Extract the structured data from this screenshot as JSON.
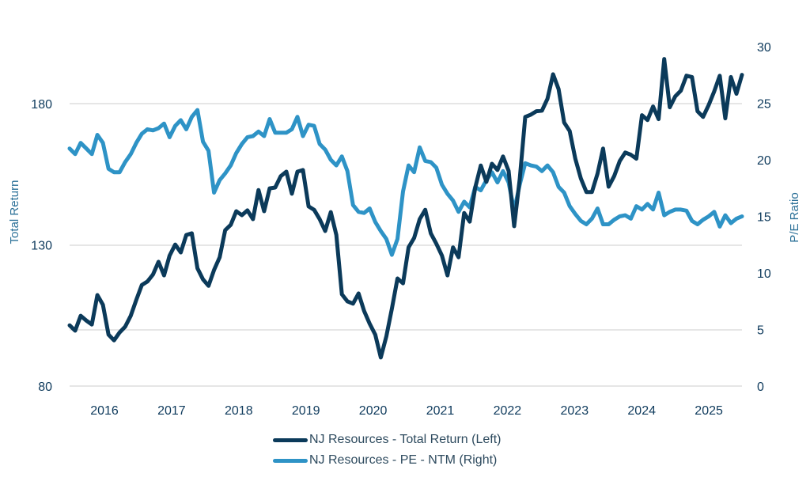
{
  "chart_data": {
    "type": "line",
    "title": "",
    "xlabel": "",
    "ylabel": "Total Return",
    "y2label": "P/E Ratio",
    "ylim": [
      80,
      200
    ],
    "y2lim": [
      0,
      30
    ],
    "yticks": [
      80,
      130,
      180
    ],
    "y2ticks": [
      0,
      5,
      10,
      15,
      20,
      25,
      30
    ],
    "xticks": [
      "2016",
      "2017",
      "2018",
      "2019",
      "2020",
      "2021",
      "2022",
      "2023",
      "2024",
      "2025"
    ],
    "x_start": "2015-07",
    "x_frequency": "monthly",
    "grid": true,
    "legend_position": "bottom",
    "colors": {
      "total_return": "#0b3a5a",
      "pe": "#2e93c6",
      "grid": "#dddddd",
      "tick": "#0e3a5c",
      "axis_title": "#2a6f97"
    },
    "series": [
      {
        "name": "NJ Resources - Total Return (Left)",
        "axis": "left",
        "values": [
          101.5,
          99.6,
          104.9,
          103.2,
          101.8,
          112.2,
          108.8,
          98.2,
          96.2,
          99.0,
          101.0,
          104.9,
          110.5,
          115.8,
          117.0,
          119.5,
          124.0,
          119.2,
          126.2,
          130.1,
          127.3,
          133.5,
          134.1,
          121.7,
          117.8,
          115.5,
          121.1,
          125.6,
          135.2,
          137.1,
          141.9,
          140.5,
          142.2,
          139.1,
          149.4,
          141.9,
          150.0,
          150.3,
          154.3,
          155.9,
          148.1,
          155.9,
          156.5,
          143.6,
          142.4,
          139.1,
          134.9,
          141.6,
          133.5,
          112.5,
          110.0,
          109.2,
          112.8,
          106.6,
          102.1,
          98.2,
          90.1,
          97.6,
          107.4,
          118.1,
          116.4,
          129.1,
          132.4,
          139.1,
          142.4,
          134.1,
          130.4,
          126.2,
          119.2,
          129.1,
          125.6,
          141.3,
          138.2,
          150.3,
          158.1,
          152.3,
          158.7,
          156.5,
          161.3,
          156.2,
          136.6,
          153.2,
          175.3,
          176.1,
          177.3,
          177.5,
          181.7,
          190.4,
          185.1,
          173.3,
          170.3,
          160.5,
          153.5,
          148.7,
          148.7,
          155.2,
          164.1,
          150.6,
          154.3,
          159.7,
          162.7,
          161.9,
          160.5,
          175.9,
          174.2,
          179.0,
          174.5,
          195.8,
          178.7,
          182.6,
          184.6,
          189.9,
          189.4,
          177.3,
          175.3,
          179.5,
          184.3,
          189.9,
          174.8,
          189.4,
          183.5,
          190.2
        ]
      },
      {
        "name": "NJ Resources - PE - NTM (Right)",
        "axis": "right",
        "values": [
          21.0,
          20.5,
          21.5,
          21.0,
          20.5,
          22.2,
          21.5,
          19.2,
          18.9,
          18.9,
          19.8,
          20.5,
          21.5,
          22.3,
          22.7,
          22.6,
          22.8,
          23.2,
          22.0,
          23.0,
          23.5,
          22.7,
          23.8,
          24.4,
          21.6,
          20.8,
          17.1,
          18.2,
          18.8,
          19.5,
          20.6,
          21.4,
          22.0,
          22.1,
          22.5,
          22.1,
          23.6,
          22.4,
          22.4,
          22.4,
          22.7,
          23.8,
          22.1,
          23.1,
          23.0,
          21.4,
          20.9,
          20.0,
          19.5,
          20.3,
          19.0,
          16.0,
          15.4,
          15.3,
          15.7,
          14.5,
          13.7,
          13.0,
          11.6,
          13.0,
          17.2,
          19.5,
          18.9,
          21.1,
          19.9,
          19.8,
          19.3,
          17.8,
          17.0,
          16.4,
          15.4,
          16.3,
          15.8,
          17.6,
          17.3,
          18.2,
          18.9,
          18.0,
          19.0,
          18.0,
          15.5,
          17.8,
          19.7,
          19.5,
          19.4,
          19.0,
          19.5,
          18.9,
          17.6,
          17.1,
          15.9,
          15.2,
          14.6,
          14.3,
          14.8,
          15.7,
          14.3,
          14.3,
          14.7,
          15.0,
          15.1,
          14.8,
          15.9,
          15.6,
          16.1,
          15.6,
          17.1,
          15.1,
          15.4,
          15.6,
          15.6,
          15.5,
          14.6,
          14.3,
          14.7,
          15.0,
          15.4,
          14.1,
          15.1,
          14.4,
          14.8,
          15.0
        ]
      }
    ]
  },
  "legend": {
    "items": [
      {
        "label": "NJ Resources - Total Return (Left)",
        "color": "#0b3a5a"
      },
      {
        "label": "NJ Resources - PE - NTM (Right)",
        "color": "#2e93c6"
      }
    ]
  }
}
